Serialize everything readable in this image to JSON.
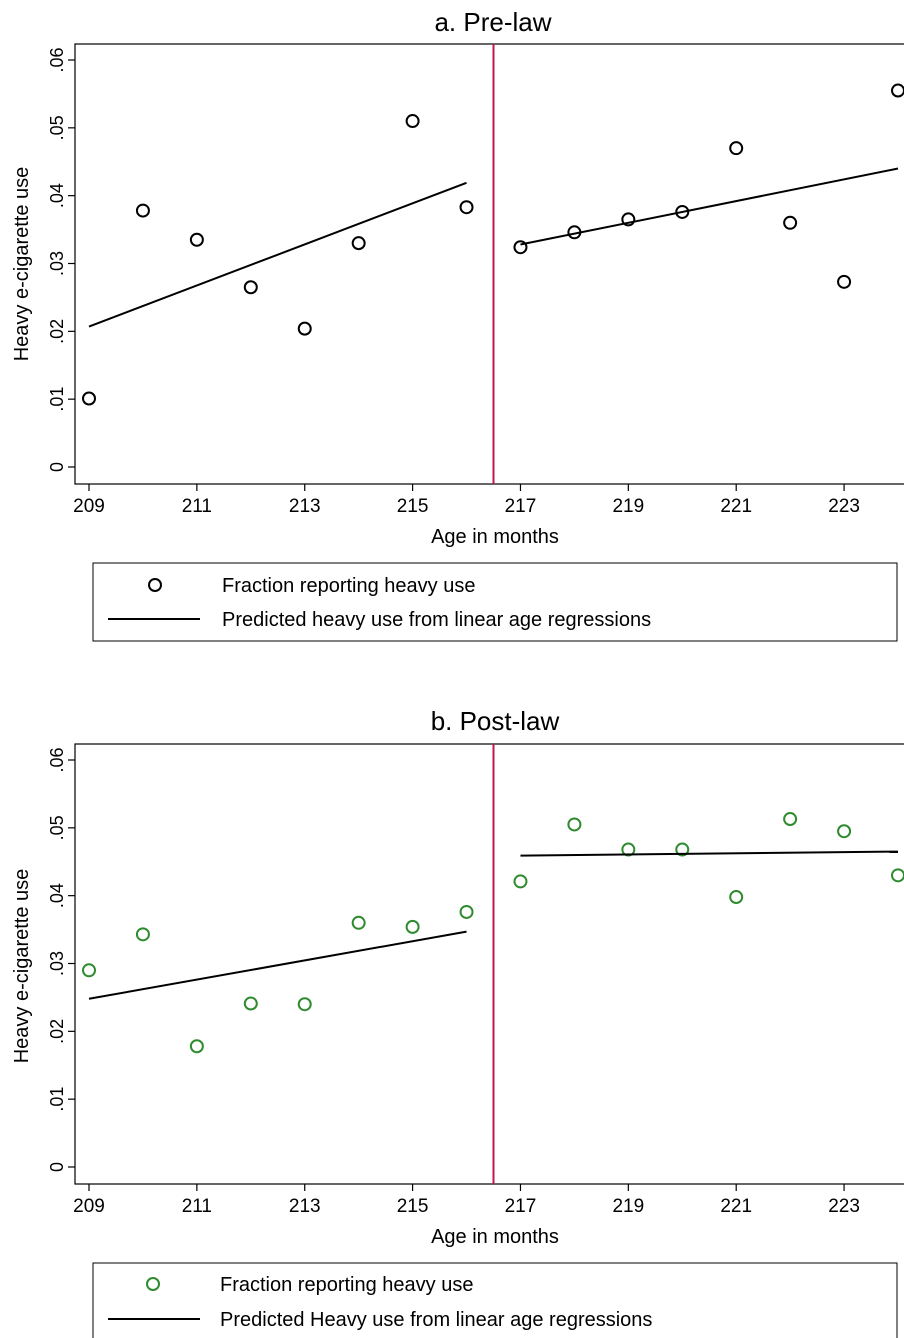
{
  "chart_data": [
    {
      "type": "scatter",
      "title": "a. Pre-law",
      "xlabel": "Age in months",
      "ylabel": "Heavy e-cigarette use",
      "xlim": [
        209,
        224
      ],
      "ylim": [
        0,
        0.06
      ],
      "x_ticks": [
        209,
        211,
        213,
        215,
        217,
        219,
        221,
        223
      ],
      "x_tick_labels": [
        "209",
        "211",
        "213",
        "215",
        "217",
        "219",
        "221",
        "223"
      ],
      "y_ticks": [
        0,
        0.01,
        0.02,
        0.03,
        0.04,
        0.05,
        0.06
      ],
      "y_tick_labels": [
        "0",
        ".01",
        ".02",
        ".03",
        ".04",
        ".05",
        ".06"
      ],
      "cutoff_x": 216.5,
      "cutoff_color": "#c0174d",
      "marker_color": "#000000",
      "series": [
        {
          "name": "Fraction reporting heavy use",
          "kind": "scatter",
          "x": [
            209,
            210,
            211,
            212,
            213,
            214,
            215,
            216,
            217,
            218,
            219,
            220,
            221,
            222,
            223,
            224
          ],
          "y": [
            0.0101,
            0.0378,
            0.0335,
            0.0265,
            0.0204,
            0.033,
            0.051,
            0.0383,
            0.0324,
            0.0346,
            0.0365,
            0.0376,
            0.047,
            0.036,
            0.0273,
            0.0555
          ]
        },
        {
          "name": "Predicted heavy use from linear age regressions",
          "kind": "line",
          "segments": [
            {
              "x": [
                209,
                216
              ],
              "y": [
                0.0207,
                0.0419
              ]
            },
            {
              "x": [
                217,
                224
              ],
              "y": [
                0.0328,
                0.044
              ]
            }
          ]
        }
      ],
      "legend": {
        "placement": "bottom",
        "entries": [
          "Fraction reporting heavy use",
          "Predicted heavy use from linear age regressions"
        ]
      }
    },
    {
      "type": "scatter",
      "title": "b. Post-law",
      "xlabel": "Age in months",
      "ylabel": "Heavy e-cigarette use",
      "xlim": [
        209,
        224
      ],
      "ylim": [
        0,
        0.06
      ],
      "x_ticks": [
        209,
        211,
        213,
        215,
        217,
        219,
        221,
        223
      ],
      "x_tick_labels": [
        "209",
        "211",
        "213",
        "215",
        "217",
        "219",
        "221",
        "223"
      ],
      "y_ticks": [
        0,
        0.01,
        0.02,
        0.03,
        0.04,
        0.05,
        0.06
      ],
      "y_tick_labels": [
        "0",
        ".01",
        ".02",
        ".03",
        ".04",
        ".05",
        ".06"
      ],
      "cutoff_x": 216.5,
      "cutoff_color": "#c0174d",
      "marker_color": "#2e8b2e",
      "series": [
        {
          "name": "Fraction reporting heavy use",
          "kind": "scatter",
          "x": [
            209,
            210,
            211,
            212,
            213,
            214,
            215,
            216,
            217,
            218,
            219,
            220,
            221,
            222,
            223,
            224
          ],
          "y": [
            0.029,
            0.0343,
            0.0178,
            0.0241,
            0.024,
            0.036,
            0.0354,
            0.0376,
            0.0421,
            0.0505,
            0.0468,
            0.0468,
            0.0398,
            0.0513,
            0.0495,
            0.043
          ]
        },
        {
          "name": "Predicted Heavy use from linear age regressions",
          "kind": "line",
          "segments": [
            {
              "x": [
                209,
                216
              ],
              "y": [
                0.0248,
                0.0347
              ]
            },
            {
              "x": [
                217,
                224
              ],
              "y": [
                0.0459,
                0.0465
              ]
            }
          ]
        }
      ],
      "legend": {
        "placement": "bottom",
        "entries": [
          "Fraction reporting heavy use",
          "Predicted Heavy use from linear age regressions"
        ]
      }
    }
  ]
}
